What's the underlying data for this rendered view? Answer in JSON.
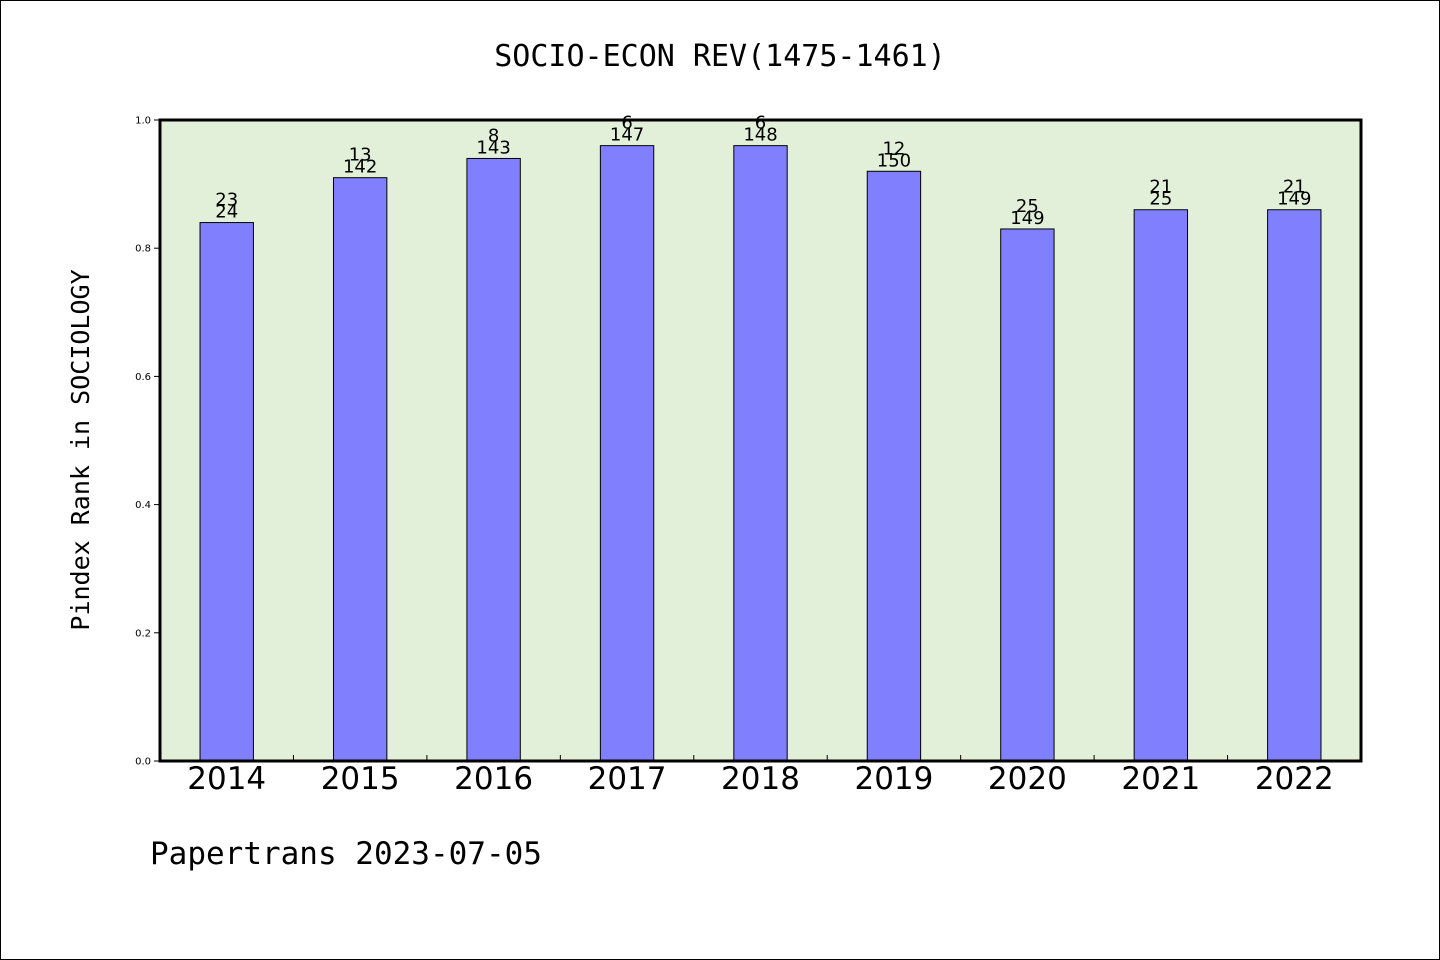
{
  "footer_text": "Papertrans 2023-07-05",
  "colors": {
    "plot_bg": "#e2f0d9",
    "bar": "#8080ff",
    "frame": "#000000"
  },
  "chart_data": {
    "type": "bar",
    "title": "SOCIO-ECON REV(1475-1461)",
    "ylabel": "Pindex Rank in SOCIOLOGY",
    "xlabel": "",
    "ylim": [
      0,
      1.0
    ],
    "yticks": [
      "0.0",
      "0.2",
      "0.4",
      "0.6",
      "0.8",
      "1.0"
    ],
    "categories": [
      "2014",
      "2015",
      "2016",
      "2017",
      "2018",
      "2019",
      "2020",
      "2021",
      "2022"
    ],
    "values": [
      0.84,
      0.91,
      0.94,
      0.96,
      0.96,
      0.92,
      0.83,
      0.86,
      0.86
    ],
    "labels_top": [
      "23",
      "13",
      "8",
      "6",
      "6",
      "12",
      "25",
      "21",
      "21"
    ],
    "labels_bottom": [
      "24",
      "142",
      "143",
      "147",
      "148",
      "150",
      "149",
      "25",
      "149"
    ]
  }
}
